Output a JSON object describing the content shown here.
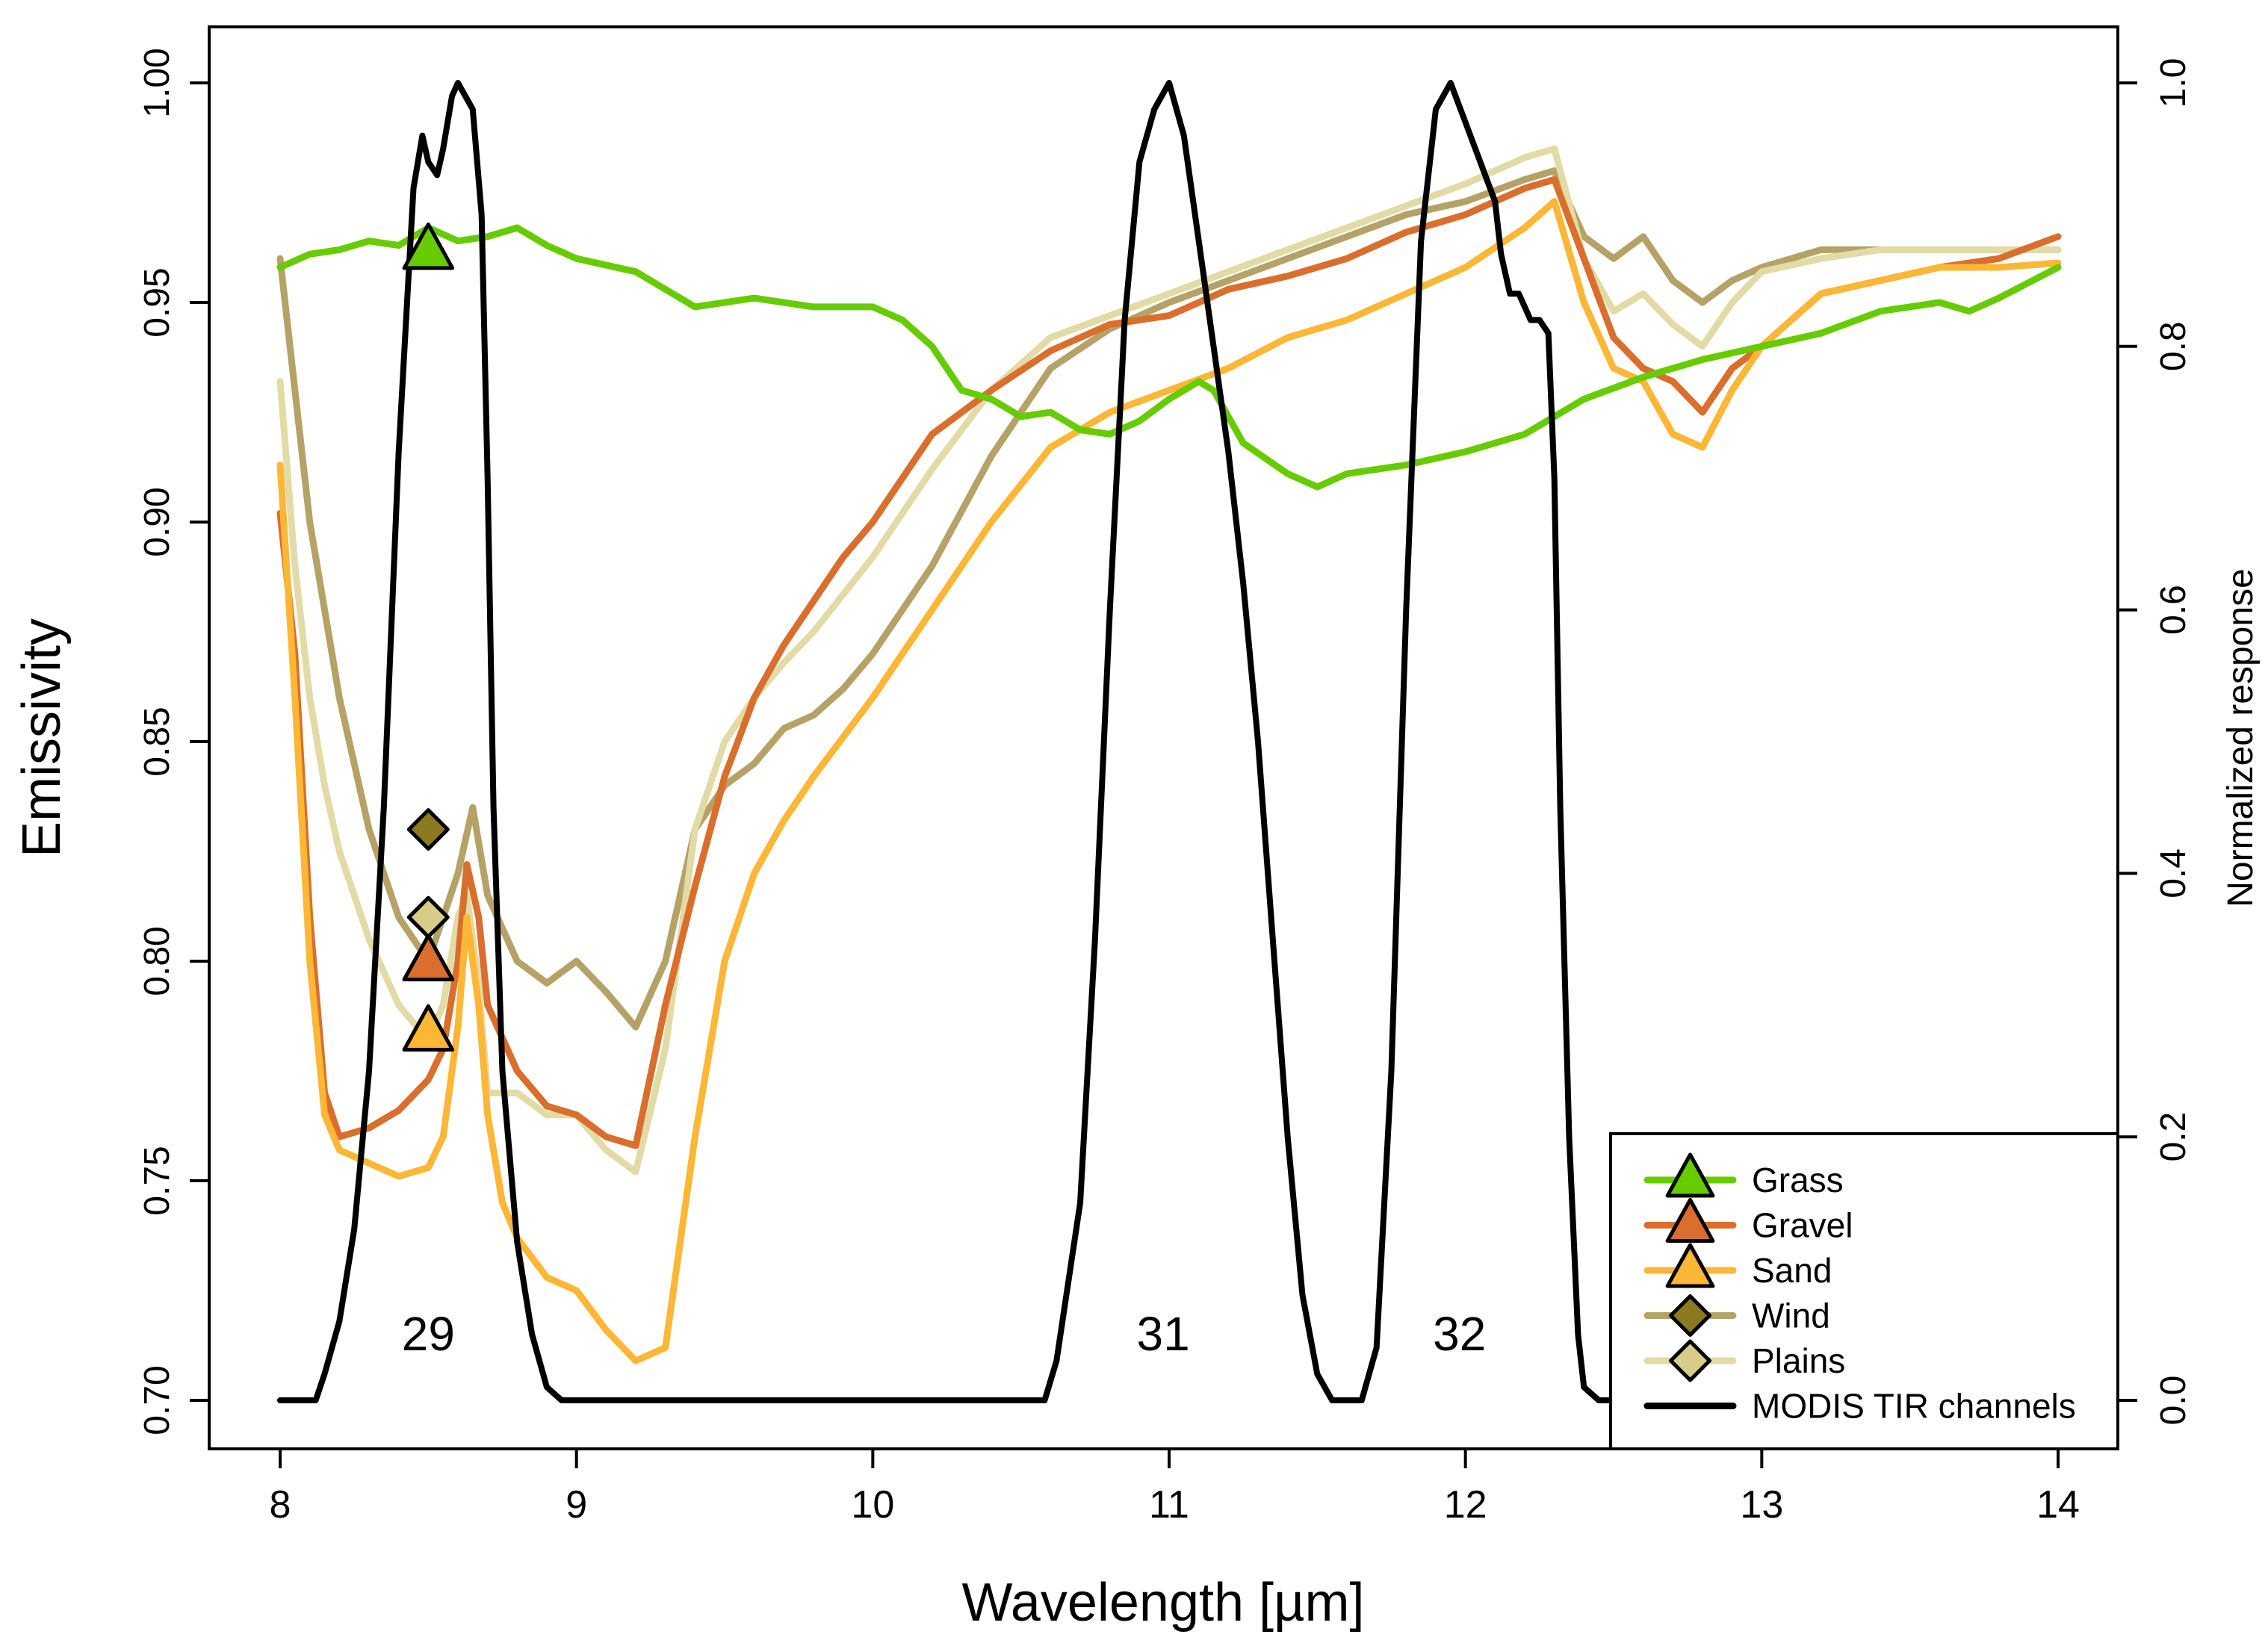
{
  "chart_data": {
    "type": "line",
    "title": "",
    "xlabel": "Wavelength [µm]",
    "ylabel": "Emissivity",
    "y2label": "Normalized response",
    "xlim": [
      8,
      14
    ],
    "ylim": [
      0.7,
      1.0
    ],
    "y2lim": [
      0,
      1.0
    ],
    "x_ticks": [
      "8",
      "9",
      "10",
      "11",
      "12",
      "13",
      "14"
    ],
    "y_ticks": [
      "0.70",
      "0.75",
      "0.80",
      "0.85",
      "0.90",
      "0.95",
      "1.00"
    ],
    "y2_ticks": [
      "0.0",
      "0.2",
      "0.4",
      "0.6",
      "0.8",
      "1.0"
    ],
    "legend_position": "bottom-right",
    "series": [
      {
        "name": "Grass",
        "color": "#66cc00",
        "marker": "triangle",
        "marker_x": 8.5,
        "marker_y": 0.962,
        "x": [
          8.0,
          8.1,
          8.2,
          8.3,
          8.4,
          8.5,
          8.6,
          8.7,
          8.8,
          8.9,
          9.0,
          9.2,
          9.4,
          9.6,
          9.8,
          10.0,
          10.1,
          10.2,
          10.3,
          10.4,
          10.5,
          10.6,
          10.7,
          10.8,
          10.9,
          11.0,
          11.1,
          11.15,
          11.25,
          11.4,
          11.5,
          11.6,
          11.8,
          12.0,
          12.2,
          12.4,
          12.6,
          12.8,
          13.0,
          13.2,
          13.4,
          13.6,
          13.7,
          13.8,
          14.0
        ],
        "y": [
          0.958,
          0.961,
          0.962,
          0.964,
          0.963,
          0.967,
          0.964,
          0.965,
          0.967,
          0.963,
          0.96,
          0.957,
          0.949,
          0.951,
          0.949,
          0.949,
          0.946,
          0.94,
          0.93,
          0.928,
          0.924,
          0.925,
          0.921,
          0.92,
          0.923,
          0.928,
          0.932,
          0.93,
          0.918,
          0.911,
          0.908,
          0.911,
          0.913,
          0.916,
          0.92,
          0.928,
          0.933,
          0.937,
          0.94,
          0.943,
          0.948,
          0.95,
          0.948,
          0.951,
          0.958
        ]
      },
      {
        "name": "Gravel",
        "color": "#d96e2d",
        "marker": "triangle",
        "marker_x": 8.5,
        "marker_y": 0.8,
        "x": [
          8.0,
          8.05,
          8.1,
          8.15,
          8.2,
          8.3,
          8.4,
          8.5,
          8.55,
          8.6,
          8.63,
          8.67,
          8.7,
          8.8,
          8.9,
          9.0,
          9.1,
          9.2,
          9.3,
          9.4,
          9.5,
          9.6,
          9.7,
          9.8,
          9.9,
          10.0,
          10.2,
          10.4,
          10.6,
          10.8,
          11.0,
          11.2,
          11.4,
          11.6,
          11.8,
          12.0,
          12.2,
          12.3,
          12.4,
          12.5,
          12.6,
          12.7,
          12.8,
          12.9,
          13.0,
          13.2,
          13.4,
          13.6,
          13.8,
          14.0
        ],
        "y": [
          0.902,
          0.87,
          0.81,
          0.77,
          0.76,
          0.762,
          0.766,
          0.773,
          0.78,
          0.8,
          0.822,
          0.81,
          0.79,
          0.775,
          0.767,
          0.765,
          0.76,
          0.758,
          0.79,
          0.817,
          0.842,
          0.86,
          0.872,
          0.882,
          0.892,
          0.9,
          0.92,
          0.93,
          0.939,
          0.945,
          0.947,
          0.953,
          0.956,
          0.96,
          0.966,
          0.97,
          0.976,
          0.978,
          0.96,
          0.942,
          0.935,
          0.932,
          0.925,
          0.935,
          0.94,
          0.952,
          0.955,
          0.958,
          0.96,
          0.965
        ]
      },
      {
        "name": "Sand",
        "color": "#fbb735",
        "marker": "triangle",
        "marker_x": 8.5,
        "marker_y": 0.784,
        "x": [
          8.0,
          8.05,
          8.1,
          8.15,
          8.2,
          8.3,
          8.4,
          8.5,
          8.55,
          8.6,
          8.63,
          8.67,
          8.7,
          8.75,
          8.8,
          8.9,
          9.0,
          9.1,
          9.2,
          9.3,
          9.4,
          9.5,
          9.6,
          9.7,
          9.8,
          10.0,
          10.2,
          10.4,
          10.6,
          10.8,
          11.0,
          11.2,
          11.4,
          11.6,
          11.8,
          12.0,
          12.2,
          12.3,
          12.4,
          12.5,
          12.6,
          12.7,
          12.8,
          12.9,
          13.0,
          13.2,
          13.4,
          13.6,
          13.8,
          14.0
        ],
        "y": [
          0.913,
          0.86,
          0.8,
          0.765,
          0.757,
          0.754,
          0.751,
          0.753,
          0.76,
          0.785,
          0.81,
          0.79,
          0.765,
          0.745,
          0.737,
          0.728,
          0.725,
          0.716,
          0.709,
          0.712,
          0.76,
          0.8,
          0.82,
          0.832,
          0.842,
          0.86,
          0.88,
          0.9,
          0.917,
          0.925,
          0.93,
          0.935,
          0.942,
          0.946,
          0.952,
          0.958,
          0.967,
          0.973,
          0.95,
          0.935,
          0.932,
          0.92,
          0.917,
          0.93,
          0.94,
          0.952,
          0.955,
          0.958,
          0.958,
          0.959
        ]
      },
      {
        "name": "Wind",
        "color": "#b5a267",
        "marker": "diamond",
        "marker_x": 8.5,
        "marker_y": 0.83,
        "x": [
          8.0,
          8.05,
          8.1,
          8.2,
          8.3,
          8.4,
          8.5,
          8.55,
          8.6,
          8.65,
          8.7,
          8.8,
          8.9,
          9.0,
          9.1,
          9.2,
          9.3,
          9.4,
          9.5,
          9.6,
          9.7,
          9.8,
          9.9,
          10.0,
          10.2,
          10.4,
          10.6,
          10.8,
          11.0,
          11.2,
          11.4,
          11.6,
          11.8,
          12.0,
          12.2,
          12.3,
          12.4,
          12.5,
          12.6,
          12.7,
          12.8,
          12.9,
          13.0,
          13.2,
          13.4,
          13.6,
          13.8,
          14.0
        ],
        "y": [
          0.96,
          0.93,
          0.9,
          0.86,
          0.83,
          0.81,
          0.8,
          0.81,
          0.82,
          0.835,
          0.815,
          0.8,
          0.795,
          0.8,
          0.793,
          0.785,
          0.8,
          0.83,
          0.84,
          0.845,
          0.853,
          0.856,
          0.862,
          0.87,
          0.89,
          0.915,
          0.935,
          0.944,
          0.95,
          0.955,
          0.96,
          0.965,
          0.97,
          0.973,
          0.978,
          0.98,
          0.965,
          0.96,
          0.965,
          0.955,
          0.95,
          0.955,
          0.958,
          0.962,
          0.962,
          0.962,
          0.962,
          0.962
        ]
      },
      {
        "name": "Plains",
        "color": "#e2dba6",
        "marker": "diamond",
        "marker_x": 8.5,
        "marker_y": 0.81,
        "x": [
          8.0,
          8.05,
          8.1,
          8.15,
          8.2,
          8.3,
          8.4,
          8.5,
          8.55,
          8.6,
          8.63,
          8.67,
          8.7,
          8.8,
          8.9,
          9.0,
          9.1,
          9.2,
          9.3,
          9.4,
          9.5,
          9.6,
          9.7,
          9.8,
          10.0,
          10.2,
          10.4,
          10.6,
          10.8,
          11.0,
          11.2,
          11.4,
          11.6,
          11.8,
          12.0,
          12.2,
          12.3,
          12.4,
          12.5,
          12.6,
          12.7,
          12.8,
          12.9,
          13.0,
          13.2,
          13.4,
          13.6,
          13.8,
          14.0
        ],
        "y": [
          0.932,
          0.89,
          0.86,
          0.84,
          0.825,
          0.805,
          0.79,
          0.782,
          0.79,
          0.81,
          0.815,
          0.795,
          0.77,
          0.77,
          0.765,
          0.765,
          0.757,
          0.752,
          0.78,
          0.83,
          0.85,
          0.86,
          0.868,
          0.875,
          0.892,
          0.912,
          0.93,
          0.942,
          0.947,
          0.952,
          0.957,
          0.962,
          0.967,
          0.972,
          0.977,
          0.983,
          0.985,
          0.96,
          0.948,
          0.952,
          0.945,
          0.94,
          0.95,
          0.957,
          0.96,
          0.962,
          0.962,
          0.962,
          0.962
        ]
      },
      {
        "name": "MODIS TIR channels",
        "color": "#000000",
        "axis": "right",
        "marker": "none",
        "band_labels": [
          "29",
          "31",
          "32"
        ],
        "x": [
          8.0,
          8.12,
          8.15,
          8.2,
          8.25,
          8.3,
          8.35,
          8.4,
          8.45,
          8.48,
          8.5,
          8.53,
          8.55,
          8.58,
          8.6,
          8.65,
          8.68,
          8.7,
          8.72,
          8.75,
          8.8,
          8.85,
          8.9,
          8.95,
          9.0,
          10.0,
          10.58,
          10.62,
          10.7,
          10.75,
          10.8,
          10.85,
          10.9,
          10.95,
          11.0,
          11.05,
          11.1,
          11.15,
          11.2,
          11.25,
          11.3,
          11.35,
          11.4,
          11.45,
          11.5,
          11.55,
          11.65,
          11.7,
          11.75,
          11.8,
          11.85,
          11.9,
          11.95,
          12.0,
          12.05,
          12.1,
          12.12,
          12.15,
          12.18,
          12.22,
          12.25,
          12.28,
          12.3,
          12.32,
          12.35,
          12.38,
          12.4,
          12.45,
          13.0,
          14.0
        ],
        "y": [
          0.0,
          0.0,
          0.02,
          0.06,
          0.13,
          0.25,
          0.45,
          0.72,
          0.92,
          0.96,
          0.94,
          0.93,
          0.95,
          0.99,
          1.0,
          0.98,
          0.9,
          0.7,
          0.45,
          0.25,
          0.12,
          0.05,
          0.01,
          0.0,
          0.0,
          0.0,
          0.0,
          0.03,
          0.15,
          0.35,
          0.6,
          0.82,
          0.94,
          0.98,
          1.0,
          0.96,
          0.88,
          0.8,
          0.72,
          0.62,
          0.5,
          0.35,
          0.2,
          0.08,
          0.02,
          0.0,
          0.0,
          0.04,
          0.25,
          0.6,
          0.88,
          0.98,
          1.0,
          0.97,
          0.94,
          0.91,
          0.87,
          0.84,
          0.84,
          0.82,
          0.82,
          0.81,
          0.7,
          0.45,
          0.2,
          0.05,
          0.01,
          0.0,
          0.0,
          0.0
        ]
      }
    ]
  }
}
